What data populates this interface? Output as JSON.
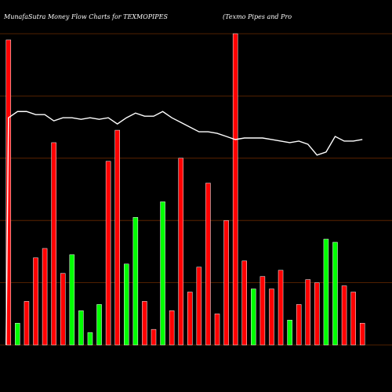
{
  "chart_data": {
    "type": "bar",
    "title": "MunafaSutra  Money Flow  Charts for TEXMOPIPES",
    "subtitle": "(Texmo  Pipes and Pro",
    "xlabel": "",
    "ylabel": "",
    "ylim": [
      0,
      100
    ],
    "grid": true,
    "legend": "none",
    "colors": {
      "background": "#000000",
      "grid": "#6b2a00",
      "up": "#00ff00",
      "down": "#ff0000",
      "line": "#ffffff",
      "text": "#ffffff"
    },
    "series": [
      {
        "values": [
          98,
          7,
          14,
          28,
          31,
          65,
          23,
          29,
          11,
          4,
          13,
          59,
          69,
          26,
          41,
          14,
          5,
          46,
          11,
          60,
          17,
          25,
          52,
          10,
          40,
          100,
          27,
          18,
          22,
          18,
          24,
          8,
          13,
          21,
          20,
          34,
          33,
          19,
          17,
          7
        ],
        "colors": [
          "red",
          "green",
          "red",
          "red",
          "red",
          "red",
          "red",
          "green",
          "green",
          "green",
          "green",
          "red",
          "red",
          "green",
          "green",
          "red",
          "red",
          "green",
          "red",
          "red",
          "red",
          "red",
          "red",
          "red",
          "red",
          "red",
          "red",
          "green",
          "red",
          "red",
          "red",
          "green",
          "red",
          "red",
          "red",
          "green",
          "green",
          "red",
          "red",
          "red"
        ]
      },
      {
        "values": [
          73,
          75,
          75,
          74,
          74,
          72,
          73,
          73,
          72.5,
          73,
          72.5,
          73,
          71,
          73,
          74.5,
          73.5,
          73.5,
          75,
          73,
          71.5,
          70,
          68.5,
          68.5,
          68,
          67,
          66,
          66.5,
          66.5,
          66.5,
          66,
          65.5,
          65,
          65.5,
          64.5,
          61,
          62,
          67,
          65.5,
          65.5,
          66
        ]
      }
    ],
    "categories": [
      "",
      "",
      "",
      "",
      "",
      "",
      "",
      "",
      "",
      "",
      "",
      "",
      "",
      "",
      "",
      "",
      "",
      "",
      "",
      "",
      "",
      "",
      "",
      "",
      "",
      "",
      "",
      "",
      "",
      "",
      "",
      "",
      "",
      "",
      "",
      "",
      "",
      "",
      "",
      ""
    ]
  }
}
